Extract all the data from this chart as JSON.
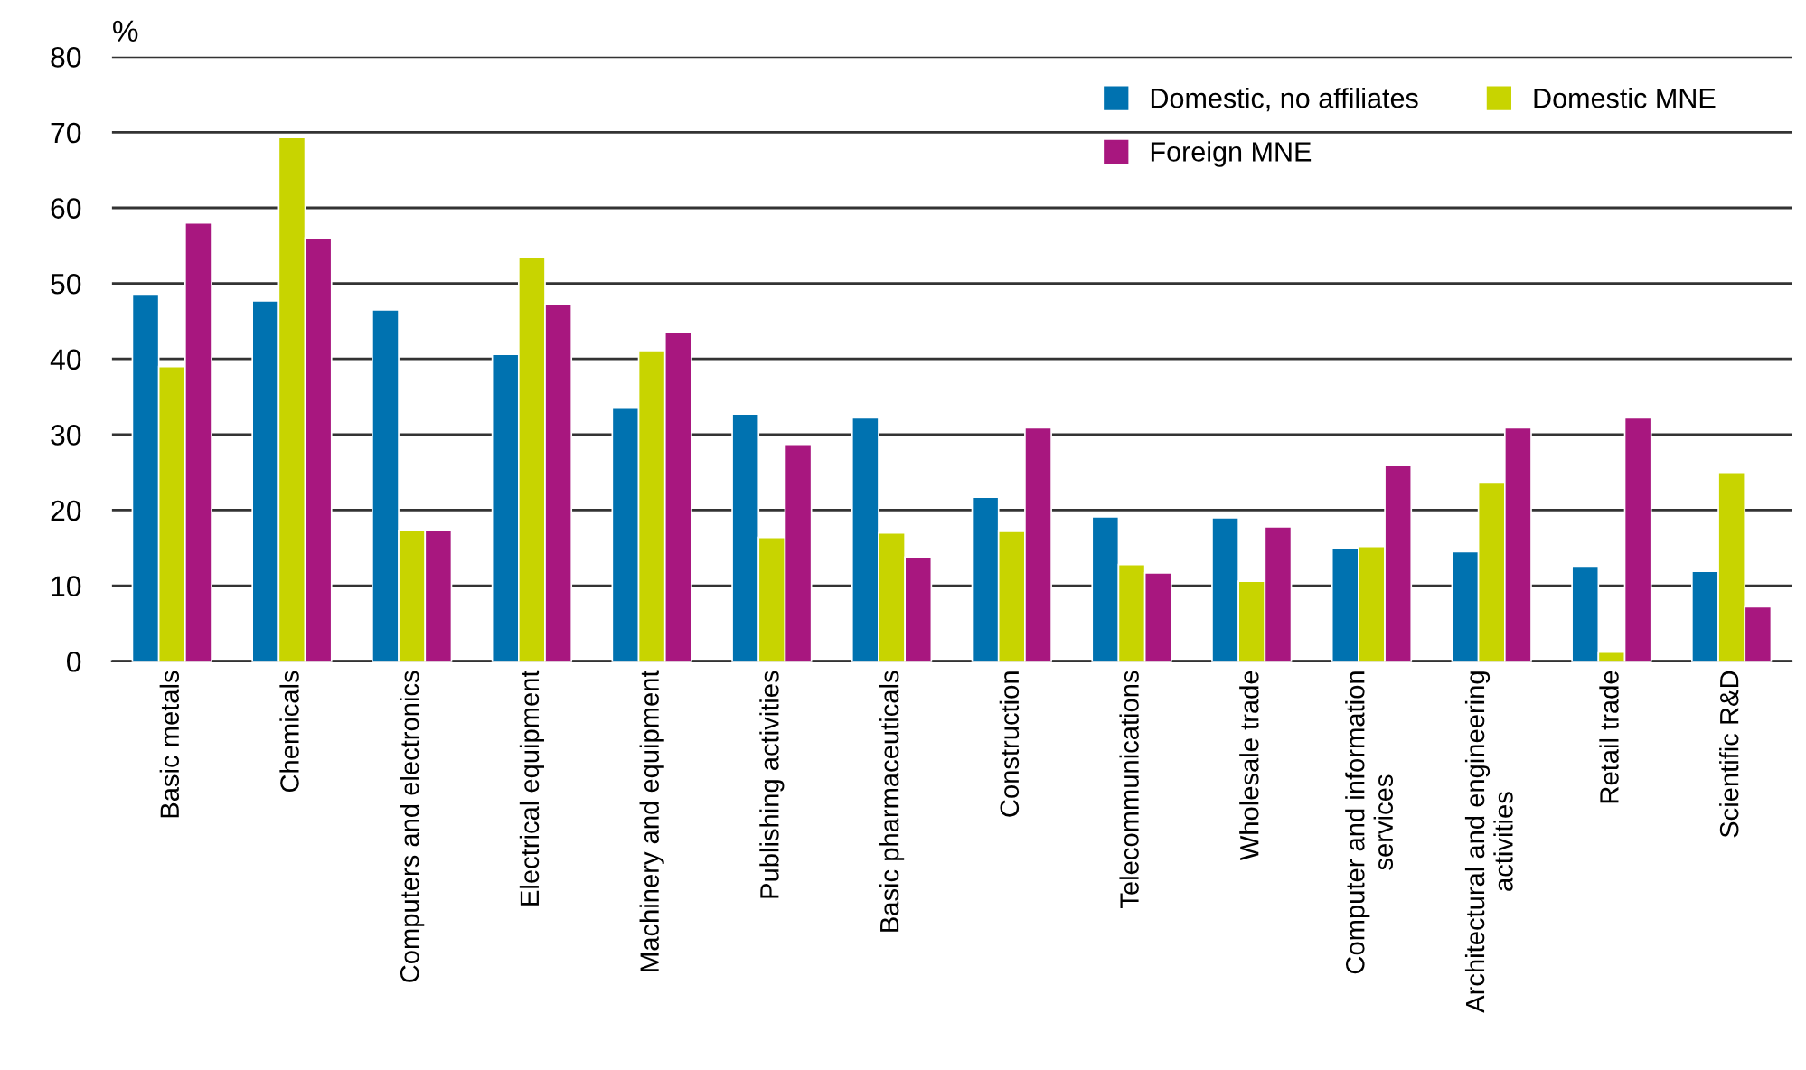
{
  "chart_data": {
    "type": "bar",
    "ylabel": "%",
    "categories": [
      "Basic metals",
      "Chemicals",
      "Computers and electronics",
      "Electrical equipment",
      "Machinery and equipment",
      "Publishing activities",
      "Basic pharmaceuticals",
      "Construction",
      "Telecommunications",
      "Wholesale trade",
      "Computer and information\nservices",
      "Architectural and engineering\nactivities",
      "Retail trade",
      "Scientific R&D"
    ],
    "series": [
      {
        "name": "Domestic, no affiliates",
        "color": "#0072b0",
        "values": [
          48.6,
          47.7,
          46.5,
          40.6,
          33.5,
          32.7,
          32.2,
          21.7,
          19.1,
          19.0,
          15.0,
          14.5,
          12.6,
          11.9
        ]
      },
      {
        "name": "Domestic MNE",
        "color": "#c8d400",
        "values": [
          39.0,
          69.3,
          17.3,
          53.4,
          41.1,
          16.4,
          17.0,
          17.2,
          12.8,
          10.6,
          15.2,
          23.6,
          1.2,
          25.0
        ]
      },
      {
        "name": "Foreign MNE",
        "color": "#a8177f",
        "values": [
          58.0,
          56.0,
          17.3,
          47.2,
          43.6,
          28.7,
          13.8,
          30.9,
          11.7,
          17.8,
          25.9,
          30.9,
          32.2,
          7.2
        ]
      }
    ],
    "ylim": [
      0,
      80
    ],
    "yticks": [
      0,
      10,
      20,
      30,
      40,
      50,
      60,
      70,
      80
    ],
    "grid": "y",
    "legend": "top right"
  }
}
